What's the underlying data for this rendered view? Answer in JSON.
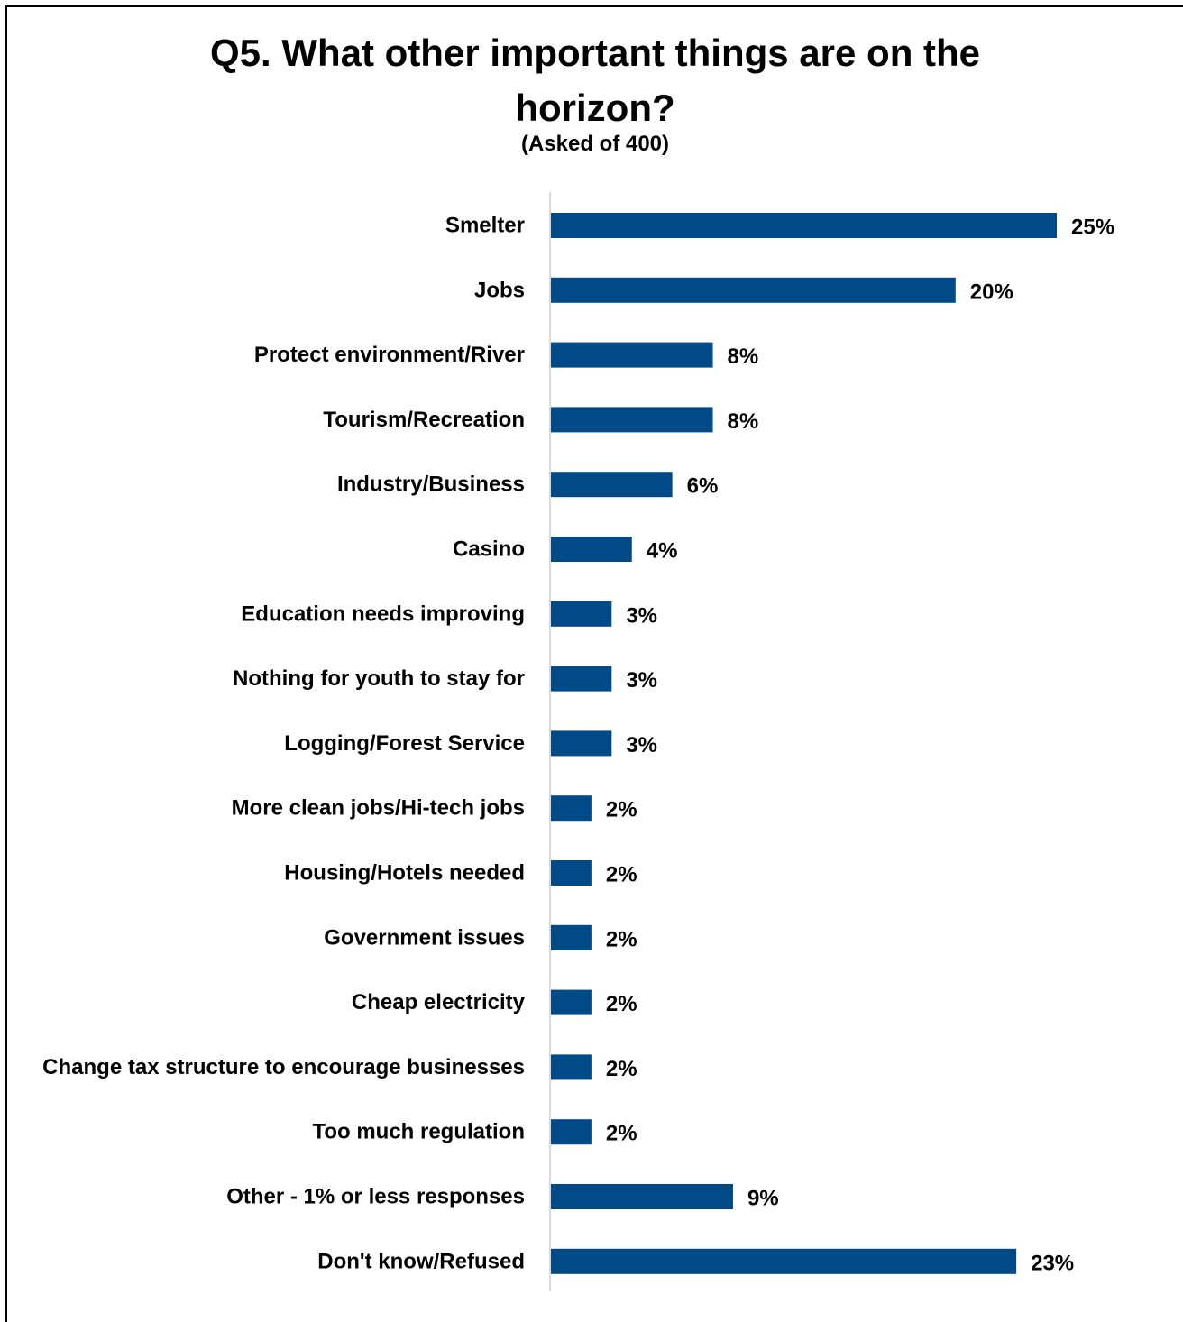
{
  "chart_data": {
    "type": "bar",
    "orientation": "horizontal",
    "title_line1": "Q5. What other important things are on the",
    "title_line2": "horizon?",
    "subtitle": "(Asked of 400)",
    "categories": [
      "Smelter",
      "Jobs",
      "Protect environment/River",
      "Tourism/Recreation",
      "Industry/Business",
      "Casino",
      "Education needs improving",
      "Nothing for youth to stay for",
      "Logging/Forest Service",
      "More clean jobs/Hi-tech jobs",
      "Housing/Hotels needed",
      "Government issues",
      "Cheap electricity",
      "Change tax structure to encourage businesses",
      "Too much regulation",
      "Other - 1% or less responses",
      "Don't know/Refused"
    ],
    "values": [
      25,
      20,
      8,
      8,
      6,
      4,
      3,
      3,
      3,
      2,
      2,
      2,
      2,
      2,
      2,
      9,
      23
    ],
    "value_labels": [
      "25%",
      "20%",
      "8%",
      "8%",
      "6%",
      "4%",
      "3%",
      "3%",
      "3%",
      "2%",
      "2%",
      "2%",
      "2%",
      "2%",
      "2%",
      "9%",
      "23%"
    ],
    "unit": "%",
    "bar_color": "#004A87",
    "axis_color": "#D9D9D9",
    "grid": false,
    "legend": "none"
  }
}
